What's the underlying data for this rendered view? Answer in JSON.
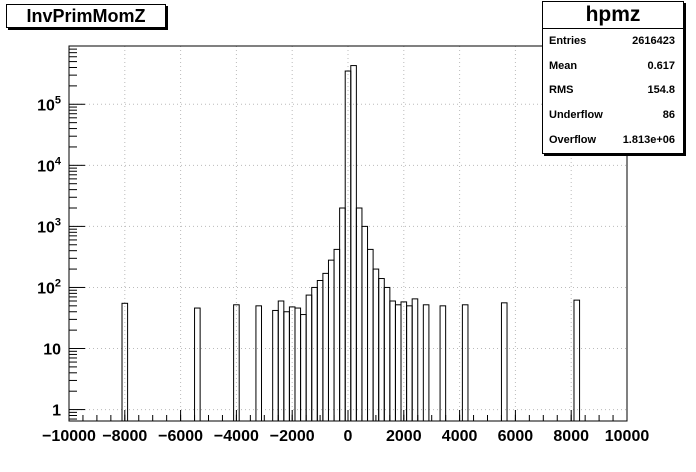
{
  "chart_data": {
    "type": "bar",
    "title": "InvPrimMomZ",
    "x_tick_labels": [
      "−10000",
      "−8000",
      "−6000",
      "−4000",
      "−2000",
      "0",
      "2000",
      "4000",
      "6000",
      "8000",
      "10000"
    ],
    "y_tick_labels": [
      "1",
      "10",
      "10^2",
      "10^3",
      "10^4",
      "10^5"
    ],
    "xlim": [
      -10000,
      10000
    ],
    "ylim": [
      0.65,
      900000
    ],
    "y_scale": "log",
    "grid": true,
    "bin_width": 200,
    "bins": [
      {
        "x": -8000,
        "y": 55
      },
      {
        "x": -5400,
        "y": 46
      },
      {
        "x": -4000,
        "y": 52
      },
      {
        "x": -3200,
        "y": 50
      },
      {
        "x": -2600,
        "y": 42
      },
      {
        "x": -2400,
        "y": 60
      },
      {
        "x": -2200,
        "y": 40
      },
      {
        "x": -2000,
        "y": 48
      },
      {
        "x": -1800,
        "y": 46
      },
      {
        "x": -1600,
        "y": 36
      },
      {
        "x": -1400,
        "y": 75
      },
      {
        "x": -1200,
        "y": 100
      },
      {
        "x": -1000,
        "y": 130
      },
      {
        "x": -800,
        "y": 170
      },
      {
        "x": -600,
        "y": 280
      },
      {
        "x": -400,
        "y": 420
      },
      {
        "x": -200,
        "y": 2000
      },
      {
        "x": 0,
        "y": 350000
      },
      {
        "x": 200,
        "y": 430000
      },
      {
        "x": 400,
        "y": 2000
      },
      {
        "x": 600,
        "y": 1000
      },
      {
        "x": 800,
        "y": 420
      },
      {
        "x": 1000,
        "y": 200
      },
      {
        "x": 1200,
        "y": 140
      },
      {
        "x": 1400,
        "y": 100
      },
      {
        "x": 1600,
        "y": 60
      },
      {
        "x": 1800,
        "y": 52
      },
      {
        "x": 2000,
        "y": 58
      },
      {
        "x": 2200,
        "y": 50
      },
      {
        "x": 2400,
        "y": 65
      },
      {
        "x": 2800,
        "y": 52
      },
      {
        "x": 3400,
        "y": 50
      },
      {
        "x": 4200,
        "y": 52
      },
      {
        "x": 5600,
        "y": 56
      },
      {
        "x": 8200,
        "y": 62
      }
    ],
    "stats": {
      "title": "hpmz",
      "rows": [
        {
          "label": "Entries",
          "value": "2616423"
        },
        {
          "label": "Mean",
          "value": "0.617"
        },
        {
          "label": "RMS",
          "value": "154.8"
        },
        {
          "label": "Underflow",
          "value": "86"
        },
        {
          "label": "Overflow",
          "value": "1.813e+06"
        }
      ]
    }
  }
}
